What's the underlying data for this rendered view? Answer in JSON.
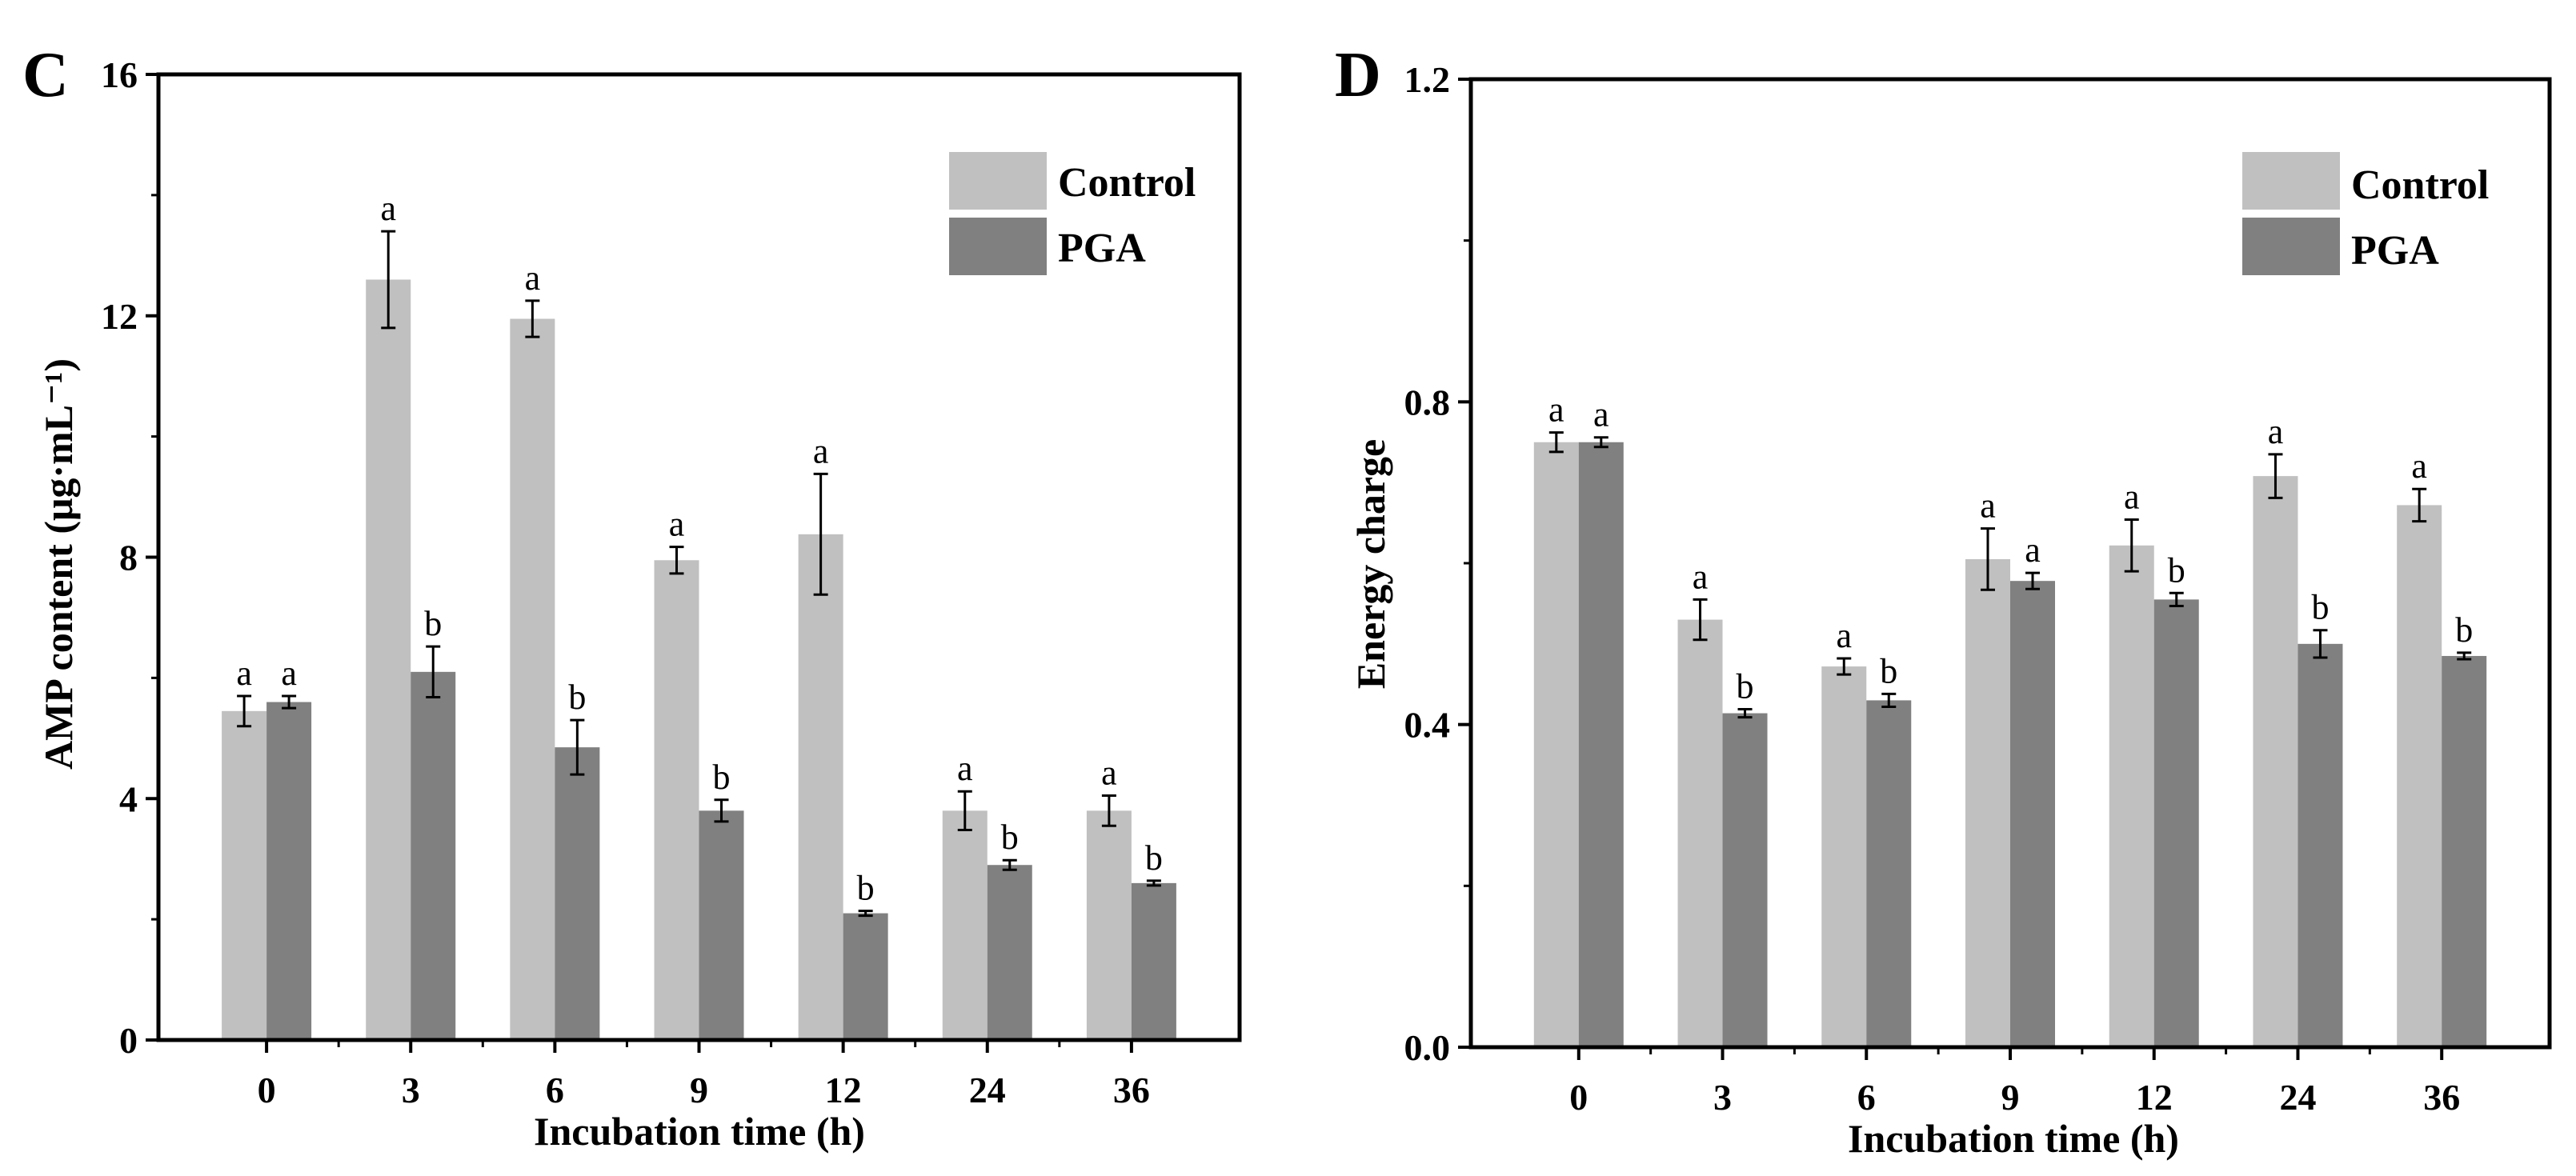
{
  "colors": {
    "control": "#c0c0c0",
    "pga": "#808080",
    "axis": "#000000"
  },
  "chart_data": [
    {
      "panel": "C",
      "type": "bar",
      "xlabel": "Incubation time (h)",
      "ylabel": "AMP content (μg·mL⁻¹)",
      "ylim": [
        0,
        16
      ],
      "yticks": [
        "0",
        "4",
        "8",
        "12",
        "16"
      ],
      "categories": [
        "0",
        "3",
        "6",
        "9",
        "12",
        "24",
        "36"
      ],
      "legend_position": "top-right",
      "series": [
        {
          "name": "Control",
          "color": "#c0c0c0",
          "values": [
            5.45,
            12.6,
            11.95,
            7.95,
            8.38,
            3.8,
            3.8
          ],
          "errors": [
            0.25,
            0.8,
            0.3,
            0.22,
            1.0,
            0.32,
            0.25
          ],
          "labels": [
            "a",
            "a",
            "a",
            "a",
            "a",
            "a",
            "a"
          ]
        },
        {
          "name": "PGA",
          "color": "#808080",
          "values": [
            5.6,
            6.1,
            4.85,
            3.8,
            2.1,
            2.9,
            2.6
          ],
          "errors": [
            0.1,
            0.42,
            0.45,
            0.18,
            0.04,
            0.08,
            0.04
          ],
          "labels": [
            "a",
            "b",
            "b",
            "b",
            "b",
            "b",
            "b"
          ]
        }
      ]
    },
    {
      "panel": "D",
      "type": "bar",
      "xlabel": "Incubation time (h)",
      "ylabel": "Energy charge",
      "ylim": [
        0,
        1.2
      ],
      "yticks": [
        "0.0",
        "0.4",
        "0.8",
        "1.2"
      ],
      "categories": [
        "0",
        "3",
        "6",
        "9",
        "12",
        "24",
        "36"
      ],
      "legend_position": "top-right",
      "series": [
        {
          "name": "Control",
          "color": "#c0c0c0",
          "values": [
            0.75,
            0.53,
            0.472,
            0.605,
            0.622,
            0.708,
            0.672
          ],
          "errors": [
            0.012,
            0.025,
            0.01,
            0.038,
            0.032,
            0.027,
            0.02
          ],
          "labels": [
            "a",
            "a",
            "a",
            "a",
            "a",
            "a",
            "a"
          ]
        },
        {
          "name": "PGA",
          "color": "#808080",
          "values": [
            0.75,
            0.414,
            0.43,
            0.578,
            0.555,
            0.5,
            0.485
          ],
          "errors": [
            0.006,
            0.005,
            0.008,
            0.01,
            0.008,
            0.017,
            0.004
          ],
          "labels": [
            "a",
            "b",
            "b",
            "a",
            "b",
            "b",
            "b"
          ]
        }
      ]
    }
  ]
}
